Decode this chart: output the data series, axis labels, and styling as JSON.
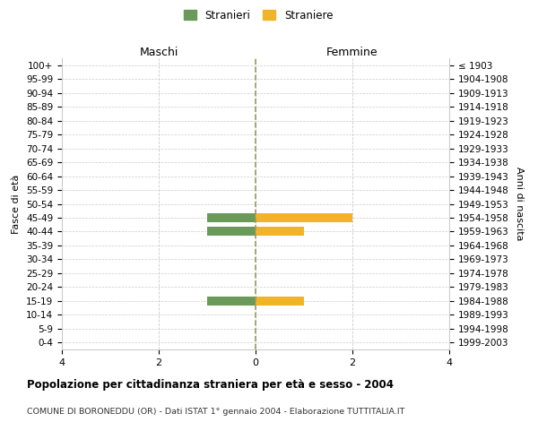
{
  "age_groups": [
    "100+",
    "95-99",
    "90-94",
    "85-89",
    "80-84",
    "75-79",
    "70-74",
    "65-69",
    "60-64",
    "55-59",
    "50-54",
    "45-49",
    "40-44",
    "35-39",
    "30-34",
    "25-29",
    "20-24",
    "15-19",
    "10-14",
    "5-9",
    "0-4"
  ],
  "birth_years": [
    "≤ 1903",
    "1904-1908",
    "1909-1913",
    "1914-1918",
    "1919-1923",
    "1924-1928",
    "1929-1933",
    "1934-1938",
    "1939-1943",
    "1944-1948",
    "1949-1953",
    "1954-1958",
    "1959-1963",
    "1964-1968",
    "1969-1973",
    "1974-1978",
    "1979-1983",
    "1984-1988",
    "1989-1993",
    "1994-1998",
    "1999-2003"
  ],
  "stranieri_males": [
    0,
    0,
    0,
    0,
    0,
    0,
    0,
    0,
    0,
    0,
    0,
    -1,
    -1,
    0,
    0,
    0,
    0,
    -1,
    0,
    0,
    0
  ],
  "straniere_females": [
    0,
    0,
    0,
    0,
    0,
    0,
    0,
    0,
    0,
    0,
    0,
    2,
    1,
    0,
    0,
    0,
    0,
    1,
    0,
    0,
    0
  ],
  "male_color": "#6a9a5a",
  "female_color": "#f0b429",
  "grid_color": "#cccccc",
  "zero_line_color": "#999966",
  "xlim": [
    -4,
    4
  ],
  "xticks": [
    -4,
    -2,
    0,
    2,
    4
  ],
  "xticklabels": [
    "4",
    "2",
    "0",
    "2",
    "4"
  ],
  "title": "Popolazione per cittadinanza straniera per età e sesso - 2004",
  "subtitle": "COMUNE DI BORONEDDU (OR) - Dati ISTAT 1° gennaio 2004 - Elaborazione TUTTITALIA.IT",
  "ylabel_left": "Fasce di età",
  "ylabel_right": "Anni di nascita",
  "header_left": "Maschi",
  "header_right": "Femmine",
  "legend_stranieri": "Stranieri",
  "legend_straniere": "Straniere",
  "bar_height": 0.65
}
